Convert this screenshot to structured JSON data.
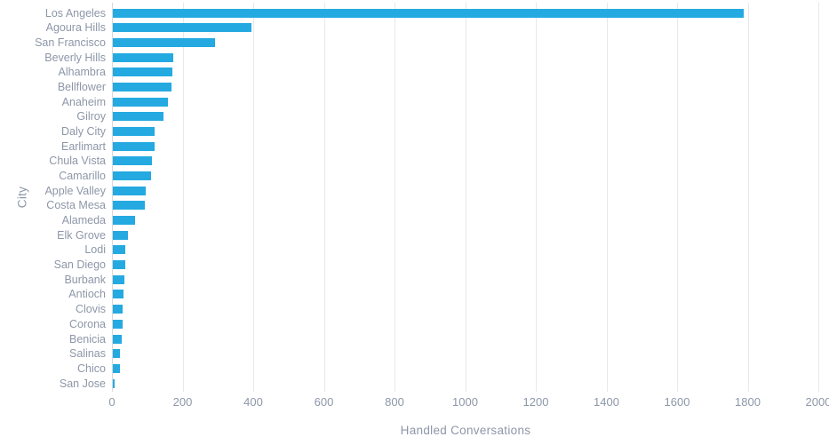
{
  "chart_data": {
    "type": "bar",
    "orientation": "horizontal",
    "xlabel": "Handled Conversations",
    "ylabel": "City",
    "xlim": [
      0,
      2000
    ],
    "xticks": [
      0,
      200,
      400,
      600,
      800,
      1000,
      1200,
      1400,
      1600,
      1800,
      2000
    ],
    "grid": "vertical gridlines on",
    "legend": "none",
    "categories": [
      "Los Angeles",
      "Agoura Hills",
      "San Francisco",
      "Beverly Hills",
      "Alhambra",
      "Bellflower",
      "Anaheim",
      "Gilroy",
      "Daly City",
      "Earlimart",
      "Chula Vista",
      "Camarillo",
      "Apple Valley",
      "Costa Mesa",
      "Alameda",
      "Elk Grove",
      "Lodi",
      "San Diego",
      "Burbank",
      "Antioch",
      "Clovis",
      "Corona",
      "Benicia",
      "Salinas",
      "Chico",
      "San Jose"
    ],
    "values": [
      1785,
      393,
      288,
      170,
      168,
      167,
      156,
      143,
      118,
      117,
      111,
      109,
      94,
      91,
      64,
      43,
      36,
      34,
      32,
      30,
      28,
      27,
      24,
      21,
      21,
      6
    ],
    "colors": {
      "bar": "#24aae1",
      "grid": "#e8e8e8",
      "axis_line": "#d9d9d9",
      "text": "#8d97a8",
      "background": "#ffffff"
    }
  }
}
